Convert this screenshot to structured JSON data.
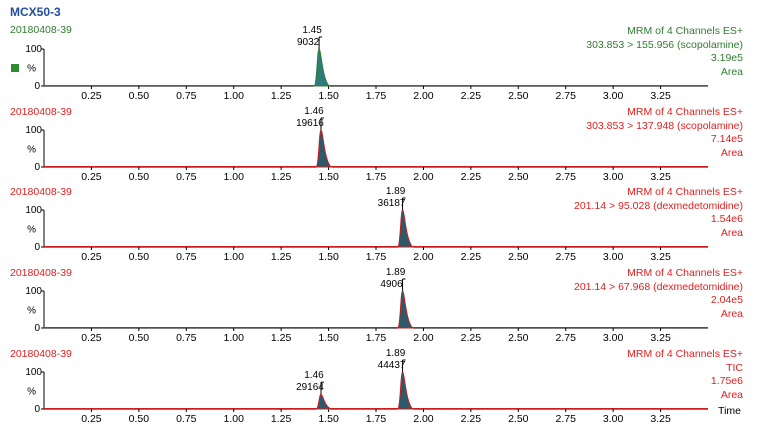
{
  "title": "MCX50-3",
  "colors": {
    "title": "#1f4e9a",
    "green": "#2e7d2e",
    "red": "#e02020",
    "axis": "#000000",
    "trace": "#cc1d1d",
    "fill": "#2b5a6b",
    "fill_green": "#2f7a7a"
  },
  "chart_data": [
    {
      "type": "line",
      "sample": "20180408-39",
      "header": "MRM of 4 Channels ES+",
      "transition": "303.853 > 155.956 (scopolamine)",
      "intensity": "3.19e5",
      "mode": "Area",
      "ylabel": "%",
      "yticks": [
        "100",
        "0"
      ],
      "xlim": [
        0,
        3.5
      ],
      "xticks": [
        "0.25",
        "0.50",
        "0.75",
        "1.00",
        "1.25",
        "1.50",
        "1.75",
        "2.00",
        "2.25",
        "2.50",
        "2.75",
        "3.00",
        "3.25"
      ],
      "selected": true,
      "peaks": [
        {
          "rt": 1.45,
          "height": 100,
          "label_rt": "1.45",
          "label_area": "9032"
        }
      ]
    },
    {
      "type": "line",
      "sample": "20180408-39",
      "header": "MRM of 4 Channels ES+",
      "transition": "303.853 > 137.948 (scopolamine)",
      "intensity": "7.14e5",
      "mode": "Area",
      "ylabel": "%",
      "yticks": [
        "100",
        "0"
      ],
      "xlim": [
        0,
        3.5
      ],
      "xticks": [
        "0.25",
        "0.50",
        "0.75",
        "1.00",
        "1.25",
        "1.50",
        "1.75",
        "2.00",
        "2.25",
        "2.50",
        "2.75",
        "3.00",
        "3.25"
      ],
      "selected": false,
      "peaks": [
        {
          "rt": 1.46,
          "height": 100,
          "label_rt": "1.46",
          "label_area": "19616"
        }
      ]
    },
    {
      "type": "line",
      "sample": "20180408-39",
      "header": "MRM of 4 Channels ES+",
      "transition": "201.14 > 95.028 (dexmedetomidine)",
      "intensity": "1.54e6",
      "mode": "Area",
      "ylabel": "%",
      "yticks": [
        "100",
        "0"
      ],
      "xlim": [
        0,
        3.5
      ],
      "xticks": [
        "0.25",
        "0.50",
        "0.75",
        "1.00",
        "1.25",
        "1.50",
        "1.75",
        "2.00",
        "2.25",
        "2.50",
        "2.75",
        "3.00",
        "3.25"
      ],
      "selected": false,
      "peaks": [
        {
          "rt": 1.89,
          "height": 100,
          "label_rt": "1.89",
          "label_area": "36187"
        }
      ]
    },
    {
      "type": "line",
      "sample": "20180408-39",
      "header": "MRM of 4 Channels ES+",
      "transition": "201.14 > 67.968 (dexmedetomidine)",
      "intensity": "2.04e5",
      "mode": "Area",
      "ylabel": "%",
      "yticks": [
        "100",
        "0"
      ],
      "xlim": [
        0,
        3.5
      ],
      "xticks": [
        "0.25",
        "0.50",
        "0.75",
        "1.00",
        "1.25",
        "1.50",
        "1.75",
        "2.00",
        "2.25",
        "2.50",
        "2.75",
        "3.00",
        "3.25"
      ],
      "selected": false,
      "peaks": [
        {
          "rt": 1.89,
          "height": 100,
          "label_rt": "1.89",
          "label_area": "4906"
        }
      ]
    },
    {
      "type": "line",
      "sample": "20180408-39",
      "header": "MRM of 4 Channels ES+",
      "transition": "TIC",
      "intensity": "1.75e6",
      "mode": "Area",
      "ylabel": "%",
      "yticks": [
        "100",
        "0"
      ],
      "xlim": [
        0,
        3.5
      ],
      "xticks": [
        "0.25",
        "0.50",
        "0.75",
        "1.00",
        "1.25",
        "1.50",
        "1.75",
        "2.00",
        "2.25",
        "2.50",
        "2.75",
        "3.00",
        "3.25"
      ],
      "xlabel": "Time",
      "selected": false,
      "peaks": [
        {
          "rt": 1.46,
          "height": 40,
          "label_rt": "1.46",
          "label_area": "29164"
        },
        {
          "rt": 1.89,
          "height": 100,
          "label_rt": "1.89",
          "label_area": "44437"
        }
      ]
    }
  ]
}
